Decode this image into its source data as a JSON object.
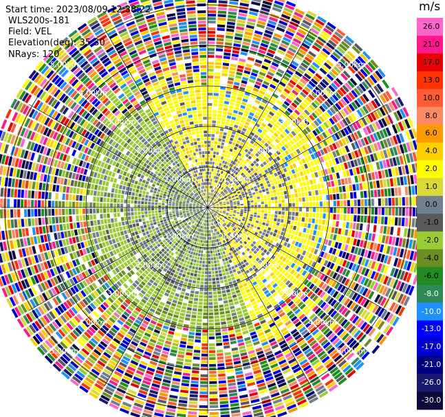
{
  "header": {
    "start_time": "Start time: 2023/08/09 12:38:22",
    "instrument": "WLS200s-181",
    "field": "Field: VEL",
    "elevation": "Elevation(deg): 35.30",
    "nrays": "NRays: 120"
  },
  "chart_data": {
    "type": "heatmap",
    "projection": "polar-ppi",
    "field": "VEL",
    "units": "m/s",
    "nrays": 120,
    "elevation_deg": 35.3,
    "max_range_km": 5.0,
    "range_ring_labels": [
      "1.00km",
      "2.00km",
      "3.00km",
      "4.00km",
      "5.00km"
    ],
    "range_rings_km": [
      1,
      2,
      3,
      4,
      5
    ],
    "colorbar": {
      "unit_label": "m/s",
      "ticks": [
        "26.0",
        "21.0",
        "17.0",
        "13.0",
        "10.0",
        "8.0",
        "6.0",
        "4.0",
        "2.0",
        "1.0",
        "0.0",
        "-1.0",
        "-2.0",
        "-4.0",
        "-6.0",
        "-8.0",
        "-10.0",
        "-13.0",
        "-17.0",
        "-21.0",
        "-26.0",
        "-30.0"
      ],
      "colors": [
        "#ff66cc",
        "#ff1a8c",
        "#e60000",
        "#ff3300",
        "#ff5c33",
        "#ff8a66",
        "#ff9900",
        "#ffd000",
        "#ffff00",
        "#d9d93a",
        "#708090",
        "#5a5a5a",
        "#99cc33",
        "#6b8e23",
        "#228b22",
        "#2e8b57",
        "#1e90ff",
        "#0000ff",
        "#0000cd",
        "#000080",
        "#191970",
        "#0b0b3b"
      ]
    },
    "regions": [
      {
        "r_km": [
          0,
          2.2
        ],
        "az_deg": [
          330,
          160
        ],
        "value": 2.0
      },
      {
        "r_km": [
          0,
          2.2
        ],
        "az_deg": [
          160,
          330
        ],
        "value": -1.5
      },
      {
        "r_km": [
          2.2,
          3.0
        ],
        "value": "mixed"
      },
      {
        "r_km": [
          3.0,
          5.4
        ],
        "value": "noise"
      }
    ]
  }
}
